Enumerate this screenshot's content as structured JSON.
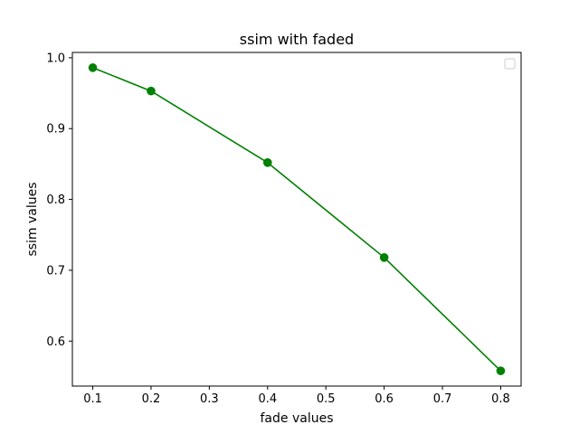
{
  "chart_data": {
    "type": "line",
    "title": "ssim with faded",
    "xlabel": "fade values",
    "ylabel": "ssim values",
    "x": [
      0.1,
      0.2,
      0.4,
      0.6,
      0.8
    ],
    "series": [
      {
        "values": [
          0.986,
          0.953,
          0.852,
          0.718,
          0.558
        ],
        "color": "#008000",
        "marker": "circle"
      }
    ],
    "xlim": [
      0.065,
      0.835
    ],
    "ylim": [
      0.5365,
      1.0075
    ],
    "xticks": [
      "0.1",
      "0.2",
      "0.3",
      "0.4",
      "0.5",
      "0.6",
      "0.7",
      "0.8"
    ],
    "yticks": [
      "0.6",
      "0.7",
      "0.8",
      "0.9",
      "1.0"
    ],
    "grid": false,
    "legend": {
      "placement": "upper right",
      "entries": []
    }
  }
}
